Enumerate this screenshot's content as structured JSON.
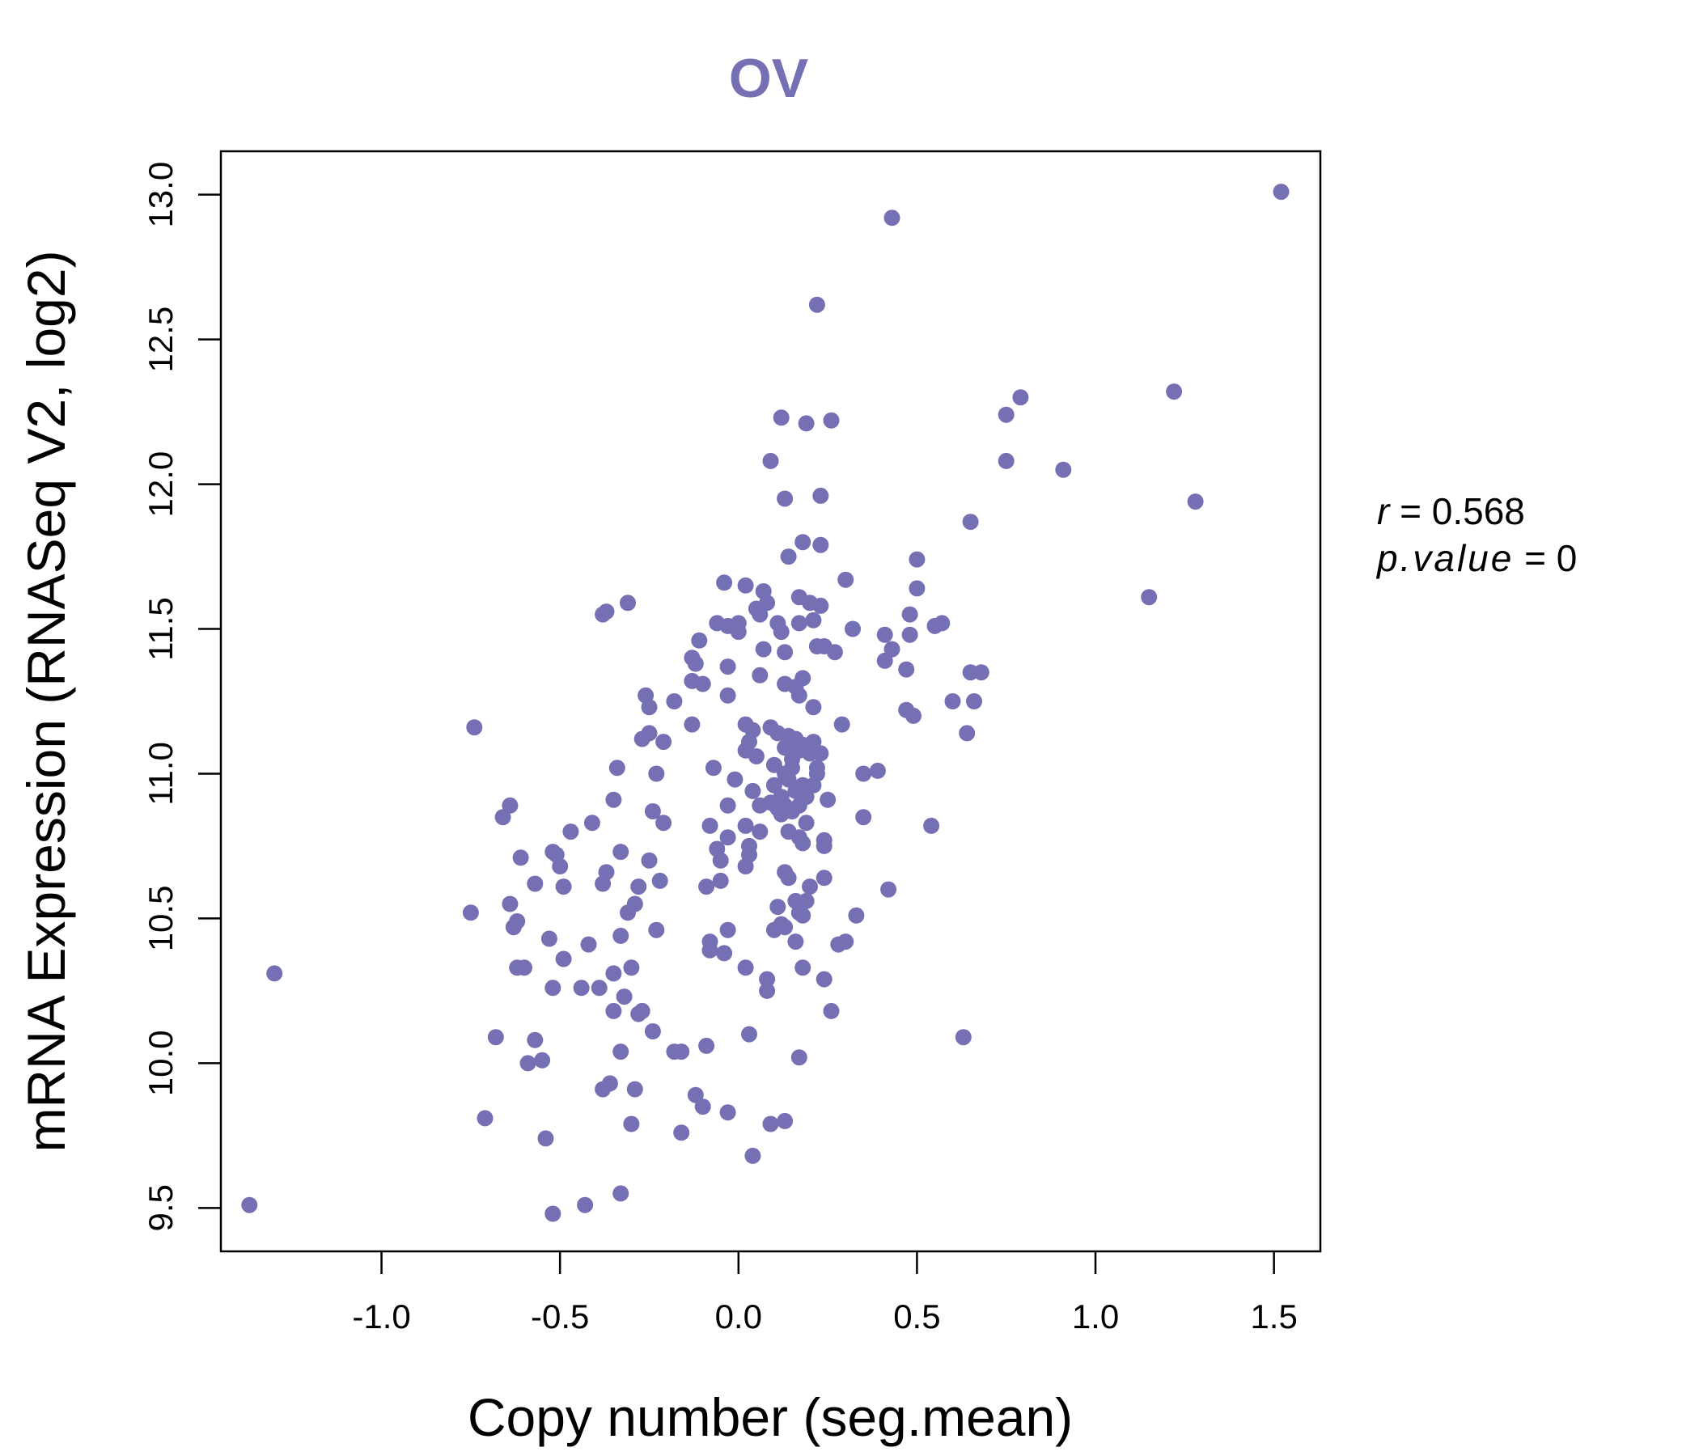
{
  "chart_data": {
    "type": "scatter",
    "title": "OV",
    "xlabel": "Copy number (seg.mean)",
    "ylabel": "mRNA Expression (RNASeq V2, log2)",
    "xlim": [
      -1.45,
      1.63
    ],
    "ylim": [
      9.35,
      13.15
    ],
    "xticks": [
      -1.0,
      -0.5,
      0.0,
      0.5,
      1.0,
      1.5
    ],
    "xtick_labels": [
      "-1.0",
      "-0.5",
      "0.0",
      "0.5",
      "1.0",
      "1.5"
    ],
    "yticks": [
      9.5,
      10.0,
      10.5,
      11.0,
      11.5,
      12.0,
      12.5,
      13.0
    ],
    "ytick_labels": [
      "9.5",
      "10.0",
      "10.5",
      "11.0",
      "11.5",
      "12.0",
      "12.5",
      "13.0"
    ],
    "grid": false,
    "legend": "none",
    "stats": {
      "r_symbol": "r",
      "r_value": "0.568",
      "p_symbol": "p.value",
      "p_value": "0"
    },
    "colors": {
      "accent": "#7570b3",
      "axis": "#000000"
    },
    "points": [
      [
        1.52,
        13.01
      ],
      [
        0.43,
        12.92
      ],
      [
        0.22,
        12.62
      ],
      [
        1.22,
        12.32
      ],
      [
        0.79,
        12.3
      ],
      [
        0.75,
        12.24
      ],
      [
        0.12,
        12.23
      ],
      [
        0.19,
        12.21
      ],
      [
        0.26,
        12.22
      ],
      [
        0.09,
        12.08
      ],
      [
        0.75,
        12.08
      ],
      [
        0.91,
        12.05
      ],
      [
        0.13,
        11.95
      ],
      [
        0.23,
        11.96
      ],
      [
        1.28,
        11.94
      ],
      [
        0.65,
        11.87
      ],
      [
        0.18,
        11.8
      ],
      [
        0.23,
        11.79
      ],
      [
        0.14,
        11.75
      ],
      [
        0.5,
        11.74
      ],
      [
        0.3,
        11.67
      ],
      [
        -0.04,
        11.66
      ],
      [
        0.02,
        11.65
      ],
      [
        0.07,
        11.63
      ],
      [
        0.5,
        11.64
      ],
      [
        1.15,
        11.61
      ],
      [
        0.17,
        11.61
      ],
      [
        0.2,
        11.59
      ],
      [
        0.23,
        11.58
      ],
      [
        0.05,
        11.57
      ],
      [
        0.08,
        11.59
      ],
      [
        -0.31,
        11.59
      ],
      [
        -0.37,
        11.56
      ],
      [
        -0.38,
        11.55
      ],
      [
        0.06,
        11.55
      ],
      [
        0.48,
        11.55
      ],
      [
        0.17,
        11.52
      ],
      [
        0.11,
        11.52
      ],
      [
        0.21,
        11.53
      ],
      [
        -0.06,
        11.52
      ],
      [
        -0.03,
        11.51
      ],
      [
        0.0,
        11.52
      ],
      [
        0.55,
        11.51
      ],
      [
        0.57,
        11.52
      ],
      [
        0.32,
        11.5
      ],
      [
        0.0,
        11.49
      ],
      [
        0.12,
        11.49
      ],
      [
        0.41,
        11.48
      ],
      [
        0.48,
        11.48
      ],
      [
        -0.11,
        11.46
      ],
      [
        0.22,
        11.44
      ],
      [
        0.24,
        11.44
      ],
      [
        0.07,
        11.43
      ],
      [
        0.13,
        11.42
      ],
      [
        0.43,
        11.43
      ],
      [
        0.27,
        11.42
      ],
      [
        -0.13,
        11.4
      ],
      [
        -0.12,
        11.38
      ],
      [
        0.41,
        11.39
      ],
      [
        -0.03,
        11.37
      ],
      [
        0.47,
        11.36
      ],
      [
        0.65,
        11.35
      ],
      [
        0.68,
        11.35
      ],
      [
        0.06,
        11.34
      ],
      [
        0.18,
        11.33
      ],
      [
        -0.13,
        11.32
      ],
      [
        -0.1,
        11.31
      ],
      [
        0.13,
        11.31
      ],
      [
        0.16,
        11.3
      ],
      [
        -0.26,
        11.27
      ],
      [
        -0.03,
        11.27
      ],
      [
        0.17,
        11.27
      ],
      [
        -0.18,
        11.25
      ],
      [
        0.6,
        11.25
      ],
      [
        0.66,
        11.25
      ],
      [
        -0.25,
        11.23
      ],
      [
        0.21,
        11.23
      ],
      [
        0.47,
        11.22
      ],
      [
        0.49,
        11.2
      ],
      [
        -0.13,
        11.17
      ],
      [
        0.02,
        11.17
      ],
      [
        0.29,
        11.17
      ],
      [
        -0.74,
        11.16
      ],
      [
        0.09,
        11.16
      ],
      [
        0.04,
        11.15
      ],
      [
        -0.25,
        11.14
      ],
      [
        0.11,
        11.14
      ],
      [
        0.14,
        11.13
      ],
      [
        0.64,
        11.14
      ],
      [
        0.16,
        11.12
      ],
      [
        -0.27,
        11.12
      ],
      [
        -0.21,
        11.11
      ],
      [
        0.21,
        11.11
      ],
      [
        0.03,
        11.11
      ],
      [
        0.18,
        11.1
      ],
      [
        0.13,
        11.09
      ],
      [
        0.02,
        11.08
      ],
      [
        0.17,
        11.08
      ],
      [
        0.2,
        11.07
      ],
      [
        0.23,
        11.07
      ],
      [
        0.05,
        11.06
      ],
      [
        0.15,
        11.05
      ],
      [
        0.1,
        11.03
      ],
      [
        0.15,
        11.02
      ],
      [
        0.22,
        11.02
      ],
      [
        -0.07,
        11.02
      ],
      [
        -0.34,
        11.02
      ],
      [
        0.39,
        11.01
      ],
      [
        0.22,
        11.0
      ],
      [
        0.13,
        11.0
      ],
      [
        -0.23,
        11.0
      ],
      [
        0.35,
        11.0
      ],
      [
        0.14,
        10.98
      ],
      [
        -0.01,
        10.98
      ],
      [
        0.1,
        10.96
      ],
      [
        0.18,
        10.96
      ],
      [
        0.21,
        10.96
      ],
      [
        0.04,
        10.94
      ],
      [
        0.16,
        10.94
      ],
      [
        0.12,
        10.92
      ],
      [
        0.19,
        10.92
      ],
      [
        -0.35,
        10.91
      ],
      [
        0.25,
        10.91
      ],
      [
        0.09,
        10.9
      ],
      [
        0.13,
        10.89
      ],
      [
        -0.03,
        10.89
      ],
      [
        0.06,
        10.89
      ],
      [
        0.17,
        10.89
      ],
      [
        -0.64,
        10.89
      ],
      [
        0.11,
        10.88
      ],
      [
        0.15,
        10.87
      ],
      [
        -0.24,
        10.87
      ],
      [
        0.12,
        10.86
      ],
      [
        -0.66,
        10.85
      ],
      [
        0.35,
        10.85
      ],
      [
        -0.41,
        10.83
      ],
      [
        -0.21,
        10.83
      ],
      [
        0.19,
        10.83
      ],
      [
        0.02,
        10.82
      ],
      [
        -0.08,
        10.82
      ],
      [
        0.54,
        10.82
      ],
      [
        0.14,
        10.8
      ],
      [
        0.06,
        10.8
      ],
      [
        -0.47,
        10.8
      ],
      [
        0.17,
        10.78
      ],
      [
        -0.03,
        10.78
      ],
      [
        0.24,
        10.77
      ],
      [
        0.18,
        10.76
      ],
      [
        0.24,
        10.75
      ],
      [
        0.03,
        10.75
      ],
      [
        -0.06,
        10.74
      ],
      [
        -0.33,
        10.73
      ],
      [
        -0.52,
        10.73
      ],
      [
        -0.51,
        10.72
      ],
      [
        0.03,
        10.72
      ],
      [
        -0.61,
        10.71
      ],
      [
        -0.25,
        10.7
      ],
      [
        -0.05,
        10.7
      ],
      [
        0.02,
        10.68
      ],
      [
        -0.5,
        10.68
      ],
      [
        -0.37,
        10.66
      ],
      [
        0.13,
        10.66
      ],
      [
        0.14,
        10.64
      ],
      [
        0.24,
        10.64
      ],
      [
        -0.05,
        10.63
      ],
      [
        -0.22,
        10.63
      ],
      [
        -0.57,
        10.62
      ],
      [
        -0.38,
        10.62
      ],
      [
        -0.09,
        10.61
      ],
      [
        -0.28,
        10.61
      ],
      [
        0.2,
        10.61
      ],
      [
        -0.49,
        10.61
      ],
      [
        0.42,
        10.6
      ],
      [
        0.16,
        10.56
      ],
      [
        0.19,
        10.56
      ],
      [
        -0.64,
        10.55
      ],
      [
        -0.29,
        10.55
      ],
      [
        0.11,
        10.54
      ],
      [
        -0.31,
        10.52
      ],
      [
        0.17,
        10.52
      ],
      [
        -0.75,
        10.52
      ],
      [
        0.18,
        10.51
      ],
      [
        0.33,
        10.51
      ],
      [
        -0.62,
        10.49
      ],
      [
        0.12,
        10.48
      ],
      [
        -0.63,
        10.47
      ],
      [
        0.13,
        10.47
      ],
      [
        -0.23,
        10.46
      ],
      [
        0.1,
        10.46
      ],
      [
        -0.03,
        10.46
      ],
      [
        -0.33,
        10.44
      ],
      [
        -0.53,
        10.43
      ],
      [
        0.16,
        10.42
      ],
      [
        -0.08,
        10.42
      ],
      [
        0.3,
        10.42
      ],
      [
        0.28,
        10.41
      ],
      [
        -0.42,
        10.41
      ],
      [
        -0.08,
        10.39
      ],
      [
        -0.04,
        10.38
      ],
      [
        -0.49,
        10.36
      ],
      [
        -0.6,
        10.33
      ],
      [
        -0.62,
        10.33
      ],
      [
        0.02,
        10.33
      ],
      [
        0.18,
        10.33
      ],
      [
        -0.3,
        10.33
      ],
      [
        -1.3,
        10.31
      ],
      [
        -0.35,
        10.31
      ],
      [
        0.08,
        10.29
      ],
      [
        0.24,
        10.29
      ],
      [
        -0.52,
        10.26
      ],
      [
        -0.44,
        10.26
      ],
      [
        -0.39,
        10.26
      ],
      [
        0.08,
        10.25
      ],
      [
        -0.32,
        10.23
      ],
      [
        -0.35,
        10.18
      ],
      [
        -0.27,
        10.18
      ],
      [
        -0.28,
        10.17
      ],
      [
        0.26,
        10.18
      ],
      [
        -0.24,
        10.11
      ],
      [
        0.03,
        10.1
      ],
      [
        -0.68,
        10.09
      ],
      [
        0.63,
        10.09
      ],
      [
        -0.57,
        10.08
      ],
      [
        -0.09,
        10.06
      ],
      [
        -0.33,
        10.04
      ],
      [
        -0.18,
        10.04
      ],
      [
        -0.16,
        10.04
      ],
      [
        0.17,
        10.02
      ],
      [
        -0.55,
        10.01
      ],
      [
        -0.59,
        10.0
      ],
      [
        -0.36,
        9.93
      ],
      [
        -0.38,
        9.91
      ],
      [
        -0.29,
        9.91
      ],
      [
        -0.12,
        9.89
      ],
      [
        -0.1,
        9.85
      ],
      [
        -0.03,
        9.83
      ],
      [
        -0.71,
        9.81
      ],
      [
        -0.3,
        9.79
      ],
      [
        0.09,
        9.79
      ],
      [
        0.13,
        9.8
      ],
      [
        -0.16,
        9.76
      ],
      [
        -0.54,
        9.74
      ],
      [
        0.04,
        9.68
      ],
      [
        -0.33,
        9.55
      ],
      [
        -1.37,
        9.51
      ],
      [
        -0.43,
        9.51
      ],
      [
        -0.52,
        9.48
      ]
    ]
  }
}
